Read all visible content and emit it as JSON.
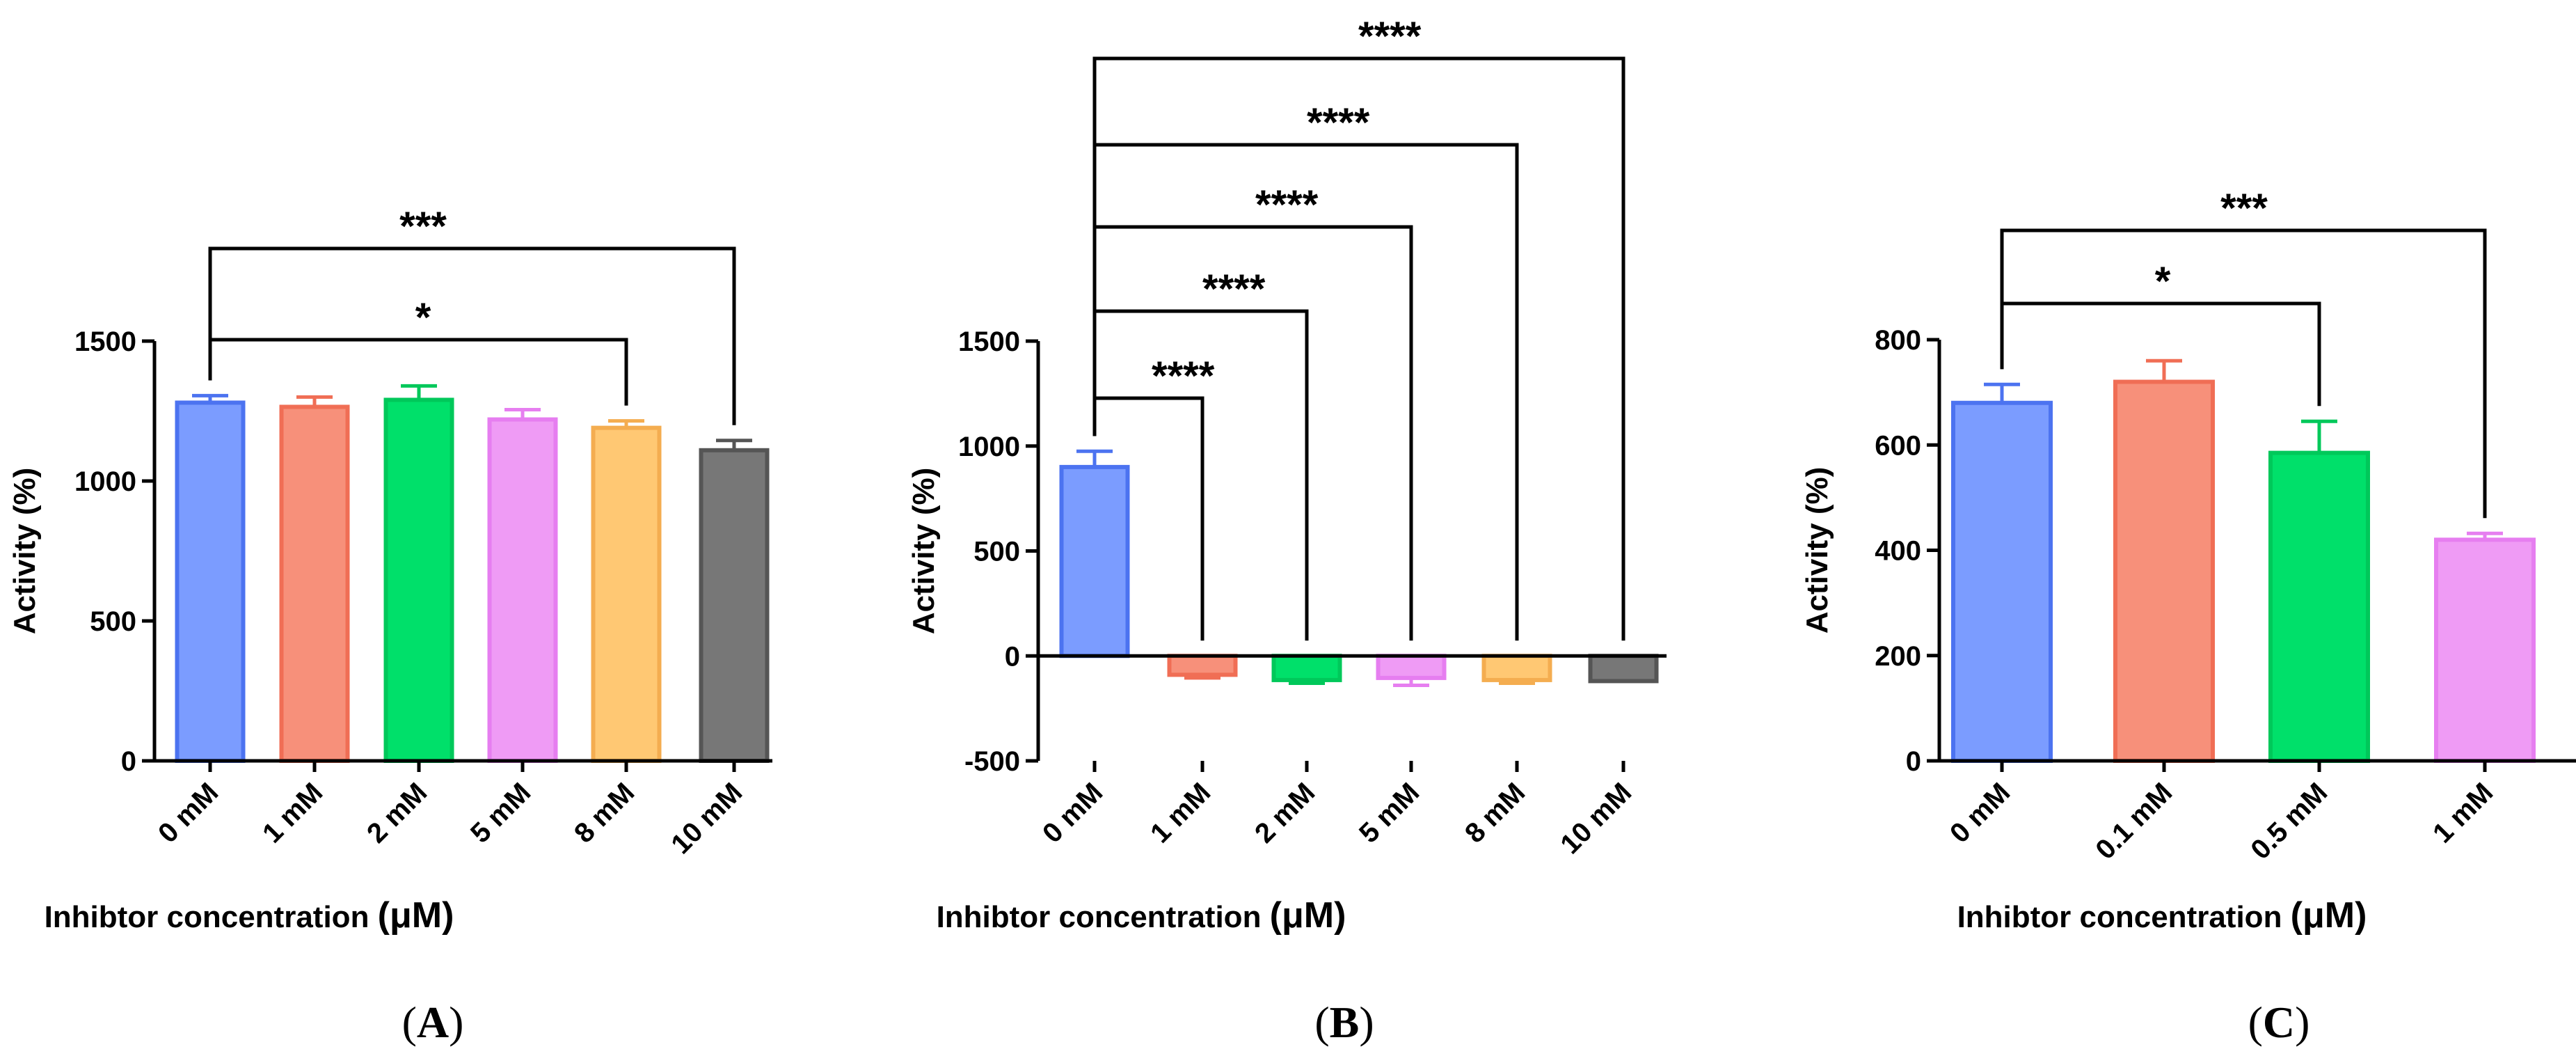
{
  "figure": {
    "panel_labels": [
      "A",
      "B",
      "C"
    ],
    "unit_suffix": "(μM)"
  },
  "chart_data": [
    {
      "type": "bar",
      "panel": "A",
      "categories": [
        "0 mM",
        "1 mM",
        "2 mM",
        "5 mM",
        "8 mM",
        "10 mM"
      ],
      "values": [
        1280,
        1265,
        1290,
        1220,
        1190,
        1110
      ],
      "errors": [
        25,
        35,
        50,
        35,
        25,
        35
      ],
      "colors": [
        "#7b9cff",
        "#f7907a",
        "#00e06a",
        "#ef9bf5",
        "#ffc873",
        "#777777"
      ],
      "edge_colors": [
        "#4c73f0",
        "#f06e55",
        "#00c85a",
        "#e67ef0",
        "#f4ad50",
        "#555555"
      ],
      "xlabel": "Inhibtor concentration",
      "ylabel": "Activity (%)",
      "ylim": [
        0,
        1500
      ],
      "yticks": [
        0,
        500,
        1000,
        1500
      ],
      "brackets": [
        {
          "from": 0,
          "to": 4,
          "label": "*"
        },
        {
          "from": 0,
          "to": 5,
          "label": "***"
        }
      ]
    },
    {
      "type": "bar",
      "panel": "B",
      "categories": [
        "0 mM",
        "1 mM",
        "2 mM",
        "5 mM",
        "8 mM",
        "10 mM"
      ],
      "values": [
        900,
        -90,
        -115,
        -105,
        -115,
        -120
      ],
      "errors": [
        75,
        15,
        15,
        35,
        15,
        0
      ],
      "colors": [
        "#7b9cff",
        "#f7907a",
        "#00e06a",
        "#ef9bf5",
        "#ffc873",
        "#777777"
      ],
      "edge_colors": [
        "#4c73f0",
        "#f06e55",
        "#00c85a",
        "#e67ef0",
        "#f4ad50",
        "#555555"
      ],
      "xlabel": "Inhibtor concentration",
      "ylabel": "Activity (%)",
      "ylim": [
        -500,
        1500
      ],
      "yticks": [
        -500,
        0,
        500,
        1000,
        1500
      ],
      "brackets": [
        {
          "from": 0,
          "to": 1,
          "label": "****"
        },
        {
          "from": 0,
          "to": 2,
          "label": "****"
        },
        {
          "from": 0,
          "to": 3,
          "label": "****"
        },
        {
          "from": 0,
          "to": 4,
          "label": "****"
        },
        {
          "from": 0,
          "to": 5,
          "label": "****"
        }
      ]
    },
    {
      "type": "bar",
      "panel": "C",
      "categories": [
        "0 mM",
        "0.1 mM",
        "0.5 mM",
        "1 mM"
      ],
      "values": [
        680,
        720,
        585,
        420
      ],
      "errors": [
        35,
        40,
        60,
        12
      ],
      "colors": [
        "#7b9cff",
        "#f7907a",
        "#00e06a",
        "#ef9bf5"
      ],
      "edge_colors": [
        "#4c73f0",
        "#f06e55",
        "#00c85a",
        "#e67ef0"
      ],
      "xlabel": "Inhibtor concentration",
      "ylabel": "Activity (%)",
      "ylim": [
        0,
        800
      ],
      "yticks": [
        0,
        200,
        400,
        600,
        800
      ],
      "brackets": [
        {
          "from": 0,
          "to": 2,
          "label": "*"
        },
        {
          "from": 0,
          "to": 3,
          "label": "***"
        }
      ]
    }
  ]
}
